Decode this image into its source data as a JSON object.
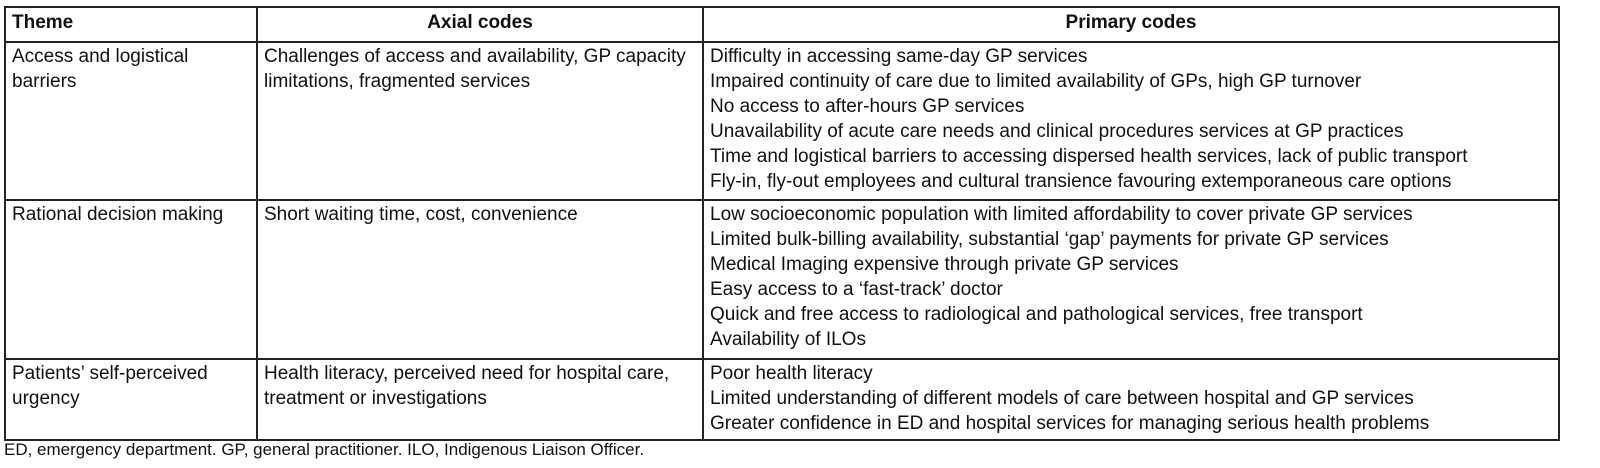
{
  "table": {
    "headers": [
      "Theme",
      "Axial codes",
      "Primary codes"
    ],
    "rows": [
      {
        "theme": "Access and logistical barriers",
        "axial": "Challenges of access and availability, GP capacity limitations, fragmented services",
        "primary": [
          "Difficulty in accessing same-day GP services",
          "Impaired continuity of care due to limited availability of GPs, high GP turnover",
          "No access to after-hours GP services",
          "Unavailability of acute care needs and clinical procedures services at GP practices",
          "Time and logistical barriers to accessing dispersed health services, lack of public transport",
          "Fly-in, fly-out employees and cultural transience favouring extemporaneous care options"
        ]
      },
      {
        "theme": "Rational decision making",
        "axial": "Short waiting time, cost, convenience",
        "primary": [
          "Low socioeconomic population with limited affordability to cover private GP services",
          "Limited bulk-billing availability, substantial ‘gap’ payments for private GP services",
          "Medical Imaging expensive through private GP services",
          "Easy access to a ‘fast-track’ doctor",
          "Quick and free access to radiological and pathological services, free transport",
          "Availability of ILOs"
        ]
      },
      {
        "theme": "Patients’ self-perceived urgency",
        "axial": "Health literacy, perceived need for hospital care, treatment or investigations",
        "primary": [
          "Poor health literacy",
          "Limited understanding of different models of care between hospital and GP services",
          "Greater confidence in ED and hospital services for managing serious health problems"
        ]
      }
    ]
  },
  "footnote": "ED, emergency department. GP, general practitioner. ILO, Indigenous Liaison Officer."
}
